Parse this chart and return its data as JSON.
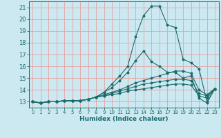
{
  "xlabel": "Humidex (Indice chaleur)",
  "background_color": "#cce8f0",
  "grid_color": "#e8a0a0",
  "line_color": "#1a6b6b",
  "spine_color": "#1a6b6b",
  "xlim": [
    -0.5,
    23.5
  ],
  "ylim": [
    12.5,
    21.5
  ],
  "xticks": [
    0,
    1,
    2,
    3,
    4,
    5,
    6,
    7,
    8,
    9,
    10,
    11,
    12,
    13,
    14,
    15,
    16,
    17,
    18,
    19,
    20,
    21,
    22,
    23
  ],
  "yticks": [
    13,
    14,
    15,
    16,
    17,
    18,
    19,
    20,
    21
  ],
  "series": [
    [
      13.0,
      12.9,
      13.0,
      13.0,
      13.1,
      13.1,
      13.1,
      13.2,
      13.4,
      13.8,
      14.5,
      15.2,
      16.0,
      18.5,
      20.3,
      21.1,
      21.1,
      19.5,
      19.3,
      16.6,
      16.3,
      15.8,
      13.0,
      14.1
    ],
    [
      13.0,
      12.9,
      13.0,
      13.0,
      13.1,
      13.1,
      13.1,
      13.2,
      13.4,
      13.8,
      14.2,
      14.8,
      15.5,
      16.5,
      17.3,
      16.4,
      16.0,
      15.5,
      15.5,
      15.0,
      15.2,
      13.3,
      12.9,
      14.1
    ],
    [
      13.0,
      12.9,
      13.0,
      13.0,
      13.1,
      13.1,
      13.1,
      13.2,
      13.4,
      13.6,
      13.8,
      14.0,
      14.3,
      14.6,
      14.8,
      15.0,
      15.2,
      15.4,
      15.6,
      15.6,
      15.4,
      14.0,
      13.6,
      14.1
    ],
    [
      13.0,
      12.9,
      13.0,
      13.0,
      13.1,
      13.1,
      13.1,
      13.2,
      13.4,
      13.5,
      13.7,
      13.9,
      14.1,
      14.3,
      14.5,
      14.6,
      14.7,
      14.8,
      14.9,
      14.9,
      14.8,
      13.7,
      13.5,
      14.1
    ],
    [
      13.0,
      12.9,
      13.0,
      13.0,
      13.1,
      13.1,
      13.1,
      13.2,
      13.4,
      13.5,
      13.6,
      13.7,
      13.9,
      14.0,
      14.1,
      14.2,
      14.3,
      14.4,
      14.5,
      14.5,
      14.4,
      13.5,
      13.3,
      14.1
    ]
  ]
}
